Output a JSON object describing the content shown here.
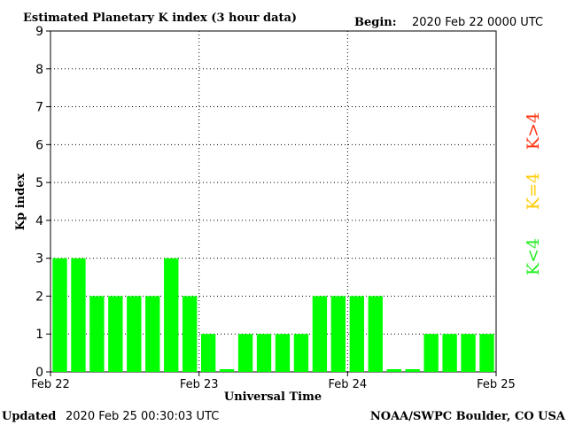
{
  "header": {
    "title": "Estimated Planetary K index (3 hour data)",
    "begin_label": "Begin:",
    "begin_value": "2020 Feb 22 0000 UTC"
  },
  "footer": {
    "updated_label": "Updated",
    "updated_value": "2020 Feb 25 00:30:03 UTC",
    "source": "NOAA/SWPC Boulder, CO USA"
  },
  "legend": [
    {
      "label": "K>4",
      "color": "#ff3311"
    },
    {
      "label": "K=4",
      "color": "#ffcc00"
    },
    {
      "label": "K<4",
      "color": "#22ee22"
    }
  ],
  "chart_data": {
    "type": "bar",
    "title": "Estimated Planetary K index (3 hour data)",
    "xlabel": "Universal Time",
    "ylabel": "Kp index",
    "ylim": [
      0,
      9
    ],
    "yticks": [
      "0",
      "1",
      "2",
      "3",
      "4",
      "5",
      "6",
      "7",
      "8",
      "9"
    ],
    "xticks": [
      "Feb 22",
      "Feb 23",
      "Feb 24",
      "Feb 25"
    ],
    "grid": true,
    "bar_color": "#00ff00",
    "series": [
      {
        "values": [
          3,
          3,
          2,
          2,
          2,
          2,
          3,
          2,
          1,
          0,
          1,
          1,
          1,
          1,
          2,
          2,
          2,
          2,
          0,
          0,
          1,
          1,
          1,
          1
        ]
      }
    ]
  }
}
